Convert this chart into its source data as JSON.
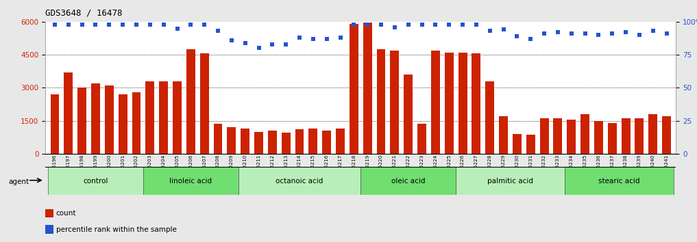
{
  "title": "GDS3648 / 16478",
  "samples": [
    "GSM525196",
    "GSM525197",
    "GSM525198",
    "GSM525199",
    "GSM525200",
    "GSM525201",
    "GSM525202",
    "GSM525203",
    "GSM525204",
    "GSM525205",
    "GSM525206",
    "GSM525207",
    "GSM525208",
    "GSM525209",
    "GSM525210",
    "GSM525211",
    "GSM525212",
    "GSM525213",
    "GSM525214",
    "GSM525215",
    "GSM525216",
    "GSM525217",
    "GSM525218",
    "GSM525219",
    "GSM525220",
    "GSM525221",
    "GSM525222",
    "GSM525223",
    "GSM525224",
    "GSM525225",
    "GSM525226",
    "GSM525227",
    "GSM525228",
    "GSM525229",
    "GSM525230",
    "GSM525231",
    "GSM525232",
    "GSM525233",
    "GSM525234",
    "GSM525235",
    "GSM525236",
    "GSM525237",
    "GSM525238",
    "GSM525239",
    "GSM525240",
    "GSM525241"
  ],
  "counts": [
    2700,
    3700,
    3000,
    3200,
    3100,
    2700,
    2800,
    3300,
    3300,
    3300,
    4750,
    4550,
    1350,
    1200,
    1150,
    1000,
    1050,
    950,
    1100,
    1150,
    1050,
    1150,
    5900,
    5950,
    4750,
    4700,
    3600,
    1350,
    4700,
    4600,
    4600,
    4550,
    3300,
    1700,
    900,
    850,
    1600,
    1600,
    1550,
    1800,
    1500,
    1400,
    1600,
    1600,
    1800,
    1700
  ],
  "percentiles": [
    98,
    98,
    98,
    98,
    98,
    98,
    98,
    98,
    98,
    95,
    98,
    98,
    93,
    86,
    84,
    80,
    83,
    83,
    88,
    87,
    87,
    88,
    98,
    98,
    98,
    96,
    98,
    98,
    98,
    98,
    98,
    98,
    93,
    94,
    89,
    87,
    91,
    92,
    91,
    91,
    90,
    91,
    92,
    90,
    93,
    91
  ],
  "groups": [
    {
      "label": "control",
      "start": 0,
      "end": 7,
      "color": "#b8efb8"
    },
    {
      "label": "linoleic acid",
      "start": 7,
      "end": 14,
      "color": "#70de70"
    },
    {
      "label": "octanoic acid",
      "start": 14,
      "end": 23,
      "color": "#b8efb8"
    },
    {
      "label": "oleic acid",
      "start": 23,
      "end": 30,
      "color": "#70de70"
    },
    {
      "label": "palmitic acid",
      "start": 30,
      "end": 38,
      "color": "#b8efb8"
    },
    {
      "label": "stearic acid",
      "start": 38,
      "end": 46,
      "color": "#70de70"
    }
  ],
  "bar_color": "#cc2200",
  "dot_color": "#2255cc",
  "ylim_left": [
    0,
    6000
  ],
  "ylim_right": [
    0,
    100
  ],
  "yticks_left": [
    0,
    1500,
    3000,
    4500,
    6000
  ],
  "yticks_right": [
    0,
    25,
    50,
    75,
    100
  ],
  "bg_color": "#e8e8e8",
  "plot_bg": "#ffffff",
  "title_fontsize": 9
}
